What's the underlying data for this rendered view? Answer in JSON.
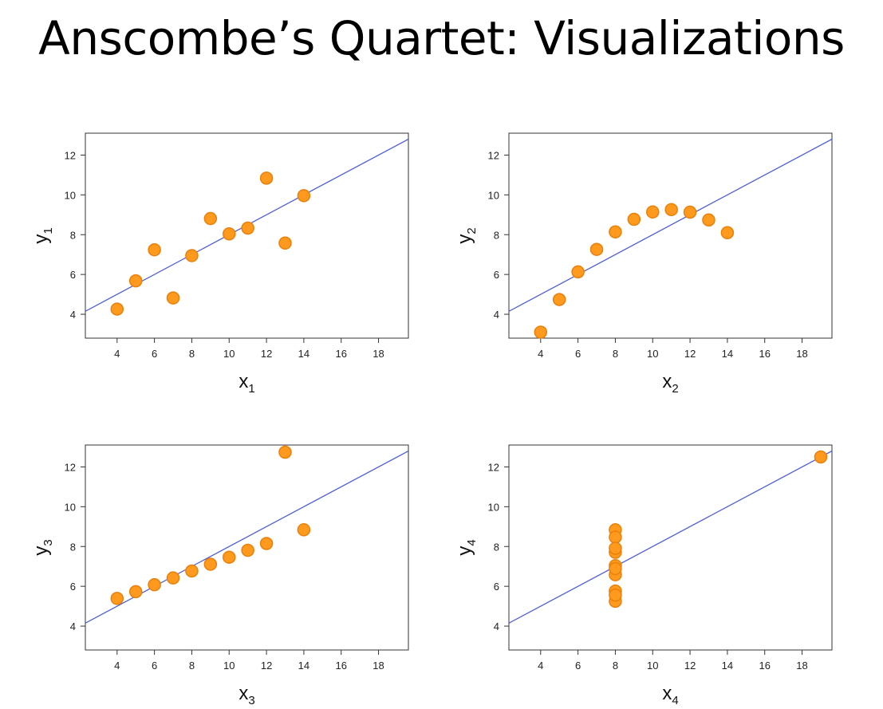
{
  "title": "Anscombe’s Quartet: Visualizations",
  "colors": {
    "point_fill": "#ff9a1e",
    "point_stroke": "#e8800a",
    "fit_line": "#5060d8",
    "frame": "#333333"
  },
  "chart_data": [
    {
      "type": "scatter",
      "xlabel": "x",
      "xlabel_sub": "1",
      "ylabel": "y",
      "ylabel_sub": "1",
      "xlim": [
        2.3,
        19.6
      ],
      "ylim": [
        2.8,
        13.1
      ],
      "xticks": [
        4,
        6,
        8,
        10,
        12,
        14,
        16,
        18
      ],
      "yticks": [
        4,
        6,
        8,
        10,
        12
      ],
      "grid": false,
      "fit_line": {
        "intercept": 3.0,
        "slope": 0.5
      },
      "x": [
        10,
        8,
        13,
        9,
        11,
        14,
        6,
        4,
        12,
        7,
        5
      ],
      "y": [
        8.04,
        6.95,
        7.58,
        8.81,
        8.33,
        9.96,
        7.24,
        4.26,
        10.84,
        4.82,
        5.68
      ]
    },
    {
      "type": "scatter",
      "xlabel": "x",
      "xlabel_sub": "2",
      "ylabel": "y",
      "ylabel_sub": "2",
      "xlim": [
        2.3,
        19.6
      ],
      "ylim": [
        2.8,
        13.1
      ],
      "xticks": [
        4,
        6,
        8,
        10,
        12,
        14,
        16,
        18
      ],
      "yticks": [
        4,
        6,
        8,
        10,
        12
      ],
      "grid": false,
      "fit_line": {
        "intercept": 3.0,
        "slope": 0.5
      },
      "x": [
        10,
        8,
        13,
        9,
        11,
        14,
        6,
        4,
        12,
        7,
        5
      ],
      "y": [
        9.14,
        8.14,
        8.74,
        8.77,
        9.26,
        8.1,
        6.13,
        3.1,
        9.13,
        7.26,
        4.74
      ]
    },
    {
      "type": "scatter",
      "xlabel": "x",
      "xlabel_sub": "3",
      "ylabel": "y",
      "ylabel_sub": "3",
      "xlim": [
        2.3,
        19.6
      ],
      "ylim": [
        2.8,
        13.1
      ],
      "xticks": [
        4,
        6,
        8,
        10,
        12,
        14,
        16,
        18
      ],
      "yticks": [
        4,
        6,
        8,
        10,
        12
      ],
      "grid": false,
      "fit_line": {
        "intercept": 3.0,
        "slope": 0.5
      },
      "x": [
        10,
        8,
        13,
        9,
        11,
        14,
        6,
        4,
        12,
        7,
        5
      ],
      "y": [
        7.46,
        6.77,
        12.74,
        7.11,
        7.81,
        8.84,
        6.08,
        5.39,
        8.15,
        6.42,
        5.73
      ]
    },
    {
      "type": "scatter",
      "xlabel": "x",
      "xlabel_sub": "4",
      "ylabel": "y",
      "ylabel_sub": "4",
      "xlim": [
        2.3,
        19.6
      ],
      "ylim": [
        2.8,
        13.1
      ],
      "xticks": [
        4,
        6,
        8,
        10,
        12,
        14,
        16,
        18
      ],
      "yticks": [
        4,
        6,
        8,
        10,
        12
      ],
      "grid": false,
      "fit_line": {
        "intercept": 3.0,
        "slope": 0.5
      },
      "x": [
        8,
        8,
        8,
        8,
        8,
        8,
        8,
        19,
        8,
        8,
        8
      ],
      "y": [
        6.58,
        5.76,
        7.71,
        8.84,
        8.47,
        7.04,
        5.25,
        12.5,
        5.56,
        7.91,
        6.89
      ]
    }
  ]
}
